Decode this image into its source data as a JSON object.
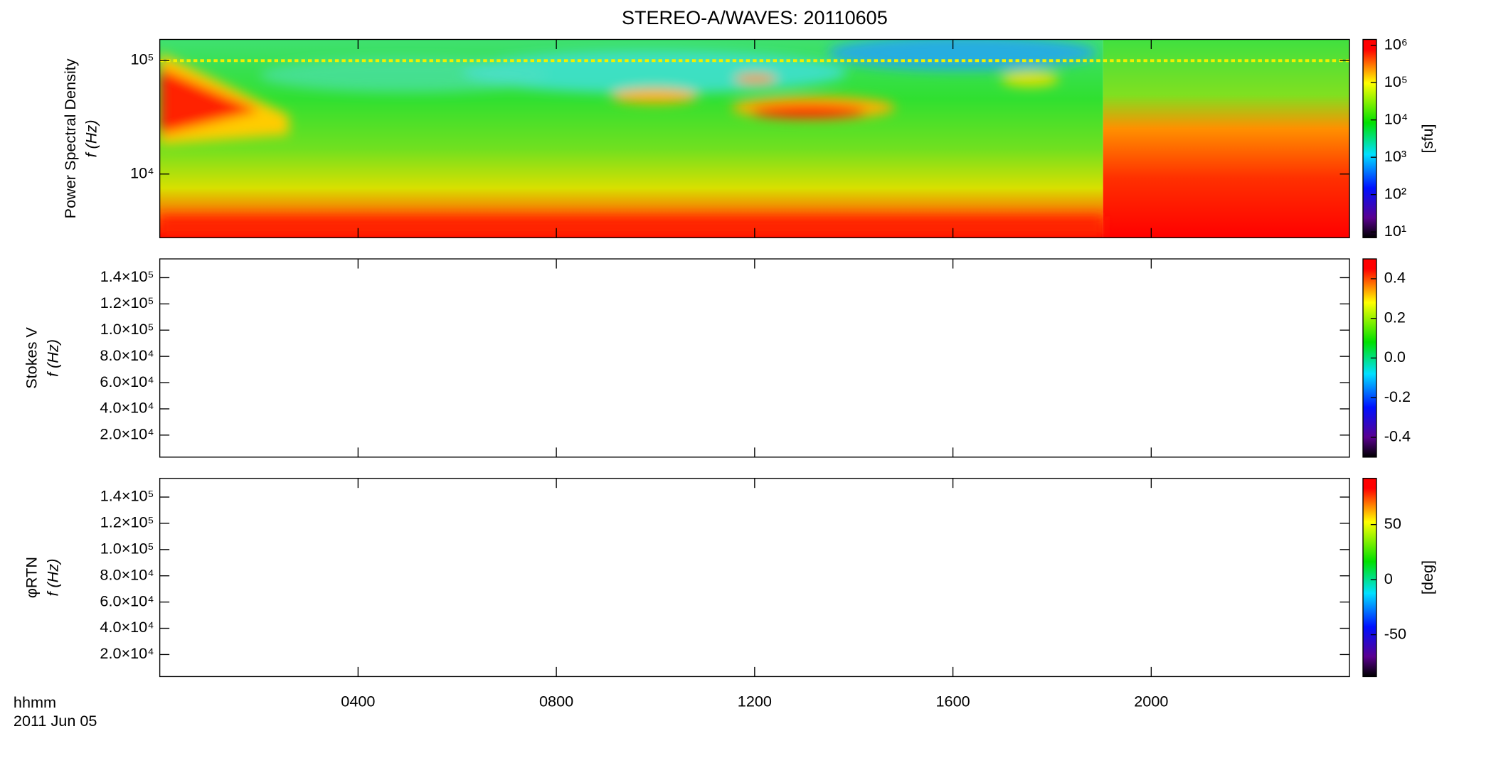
{
  "title": "STEREO-A/WAVES: 20110605",
  "corner_labels": [
    "hhmm",
    "2011 Jun 05"
  ],
  "chart_data": [
    {
      "type": "spectrogram",
      "ylabel": [
        "Power Spectral Density",
        "f (Hz)"
      ],
      "ylog": true,
      "ylim": [
        2750,
        153000
      ],
      "yticks": [
        {
          "value": 10000,
          "label": "10⁴"
        },
        {
          "value": 100000,
          "label": "10⁵"
        }
      ],
      "xlim": [
        0,
        24
      ],
      "xticks": [
        {
          "value": 4,
          "label": "0400"
        },
        {
          "value": 8,
          "label": "0800"
        },
        {
          "value": 12,
          "label": "1200"
        },
        {
          "value": 16,
          "label": "1600"
        },
        {
          "value": 20,
          "label": "2000"
        }
      ],
      "colorbar": {
        "label": "[sfu]",
        "log": true,
        "lim": [
          7,
          1430000
        ],
        "ticks": [
          {
            "value": 10,
            "label": "10¹"
          },
          {
            "value": 100,
            "label": "10²"
          },
          {
            "value": 1000,
            "label": "10³"
          },
          {
            "value": 10000,
            "label": "10⁴"
          },
          {
            "value": 100000,
            "label": "10⁵"
          },
          {
            "value": 1000000,
            "label": "10⁶"
          }
        ]
      }
    },
    {
      "type": "spectrogram",
      "ylabel": [
        "Stokes V",
        "f (Hz)"
      ],
      "ylog": false,
      "ylim": [
        3200,
        154300
      ],
      "yticks": [
        {
          "value": 20000,
          "label": "2.0×10⁴"
        },
        {
          "value": 40000,
          "label": "4.0×10⁴"
        },
        {
          "value": 60000,
          "label": "6.0×10⁴"
        },
        {
          "value": 80000,
          "label": "8.0×10⁴"
        },
        {
          "value": 100000,
          "label": "1.0×10⁵"
        },
        {
          "value": 120000,
          "label": "1.2×10⁵"
        },
        {
          "value": 140000,
          "label": "1.4×10⁵"
        }
      ],
      "xlim": [
        0,
        24
      ],
      "xticks": [
        {
          "value": 4,
          "label": "0400"
        },
        {
          "value": 8,
          "label": "0800"
        },
        {
          "value": 12,
          "label": "1200"
        },
        {
          "value": 16,
          "label": "1600"
        },
        {
          "value": 20,
          "label": "2000"
        }
      ],
      "colorbar": {
        "log": false,
        "lim": [
          -0.5,
          0.5
        ],
        "ticks": [
          {
            "value": -0.4,
            "label": "-0.4"
          },
          {
            "value": -0.2,
            "label": "-0.2"
          },
          {
            "value": 0,
            "label": "0.0"
          },
          {
            "value": 0.2,
            "label": "0.2"
          },
          {
            "value": 0.4,
            "label": "0.4"
          }
        ]
      }
    },
    {
      "type": "spectrogram",
      "ylabel": [
        "φRTN",
        "f (Hz)"
      ],
      "ylog": false,
      "ylim": [
        3200,
        154300
      ],
      "yticks": [
        {
          "value": 20000,
          "label": "2.0×10⁴"
        },
        {
          "value": 40000,
          "label": "4.0×10⁴"
        },
        {
          "value": 60000,
          "label": "6.0×10⁴"
        },
        {
          "value": 80000,
          "label": "8.0×10⁴"
        },
        {
          "value": 100000,
          "label": "1.0×10⁵"
        },
        {
          "value": 120000,
          "label": "1.2×10⁵"
        },
        {
          "value": 140000,
          "label": "1.4×10⁵"
        }
      ],
      "xlim": [
        0,
        24
      ],
      "xticks": [
        {
          "value": 4,
          "label": "0400"
        },
        {
          "value": 8,
          "label": "0800"
        },
        {
          "value": 12,
          "label": "1200"
        },
        {
          "value": 16,
          "label": "1600"
        },
        {
          "value": 20,
          "label": "2000"
        }
      ],
      "colorbar": {
        "label": "[deg]",
        "log": false,
        "lim": [
          -88,
          92
        ],
        "ticks": [
          -50,
          0,
          50
        ]
      }
    }
  ]
}
